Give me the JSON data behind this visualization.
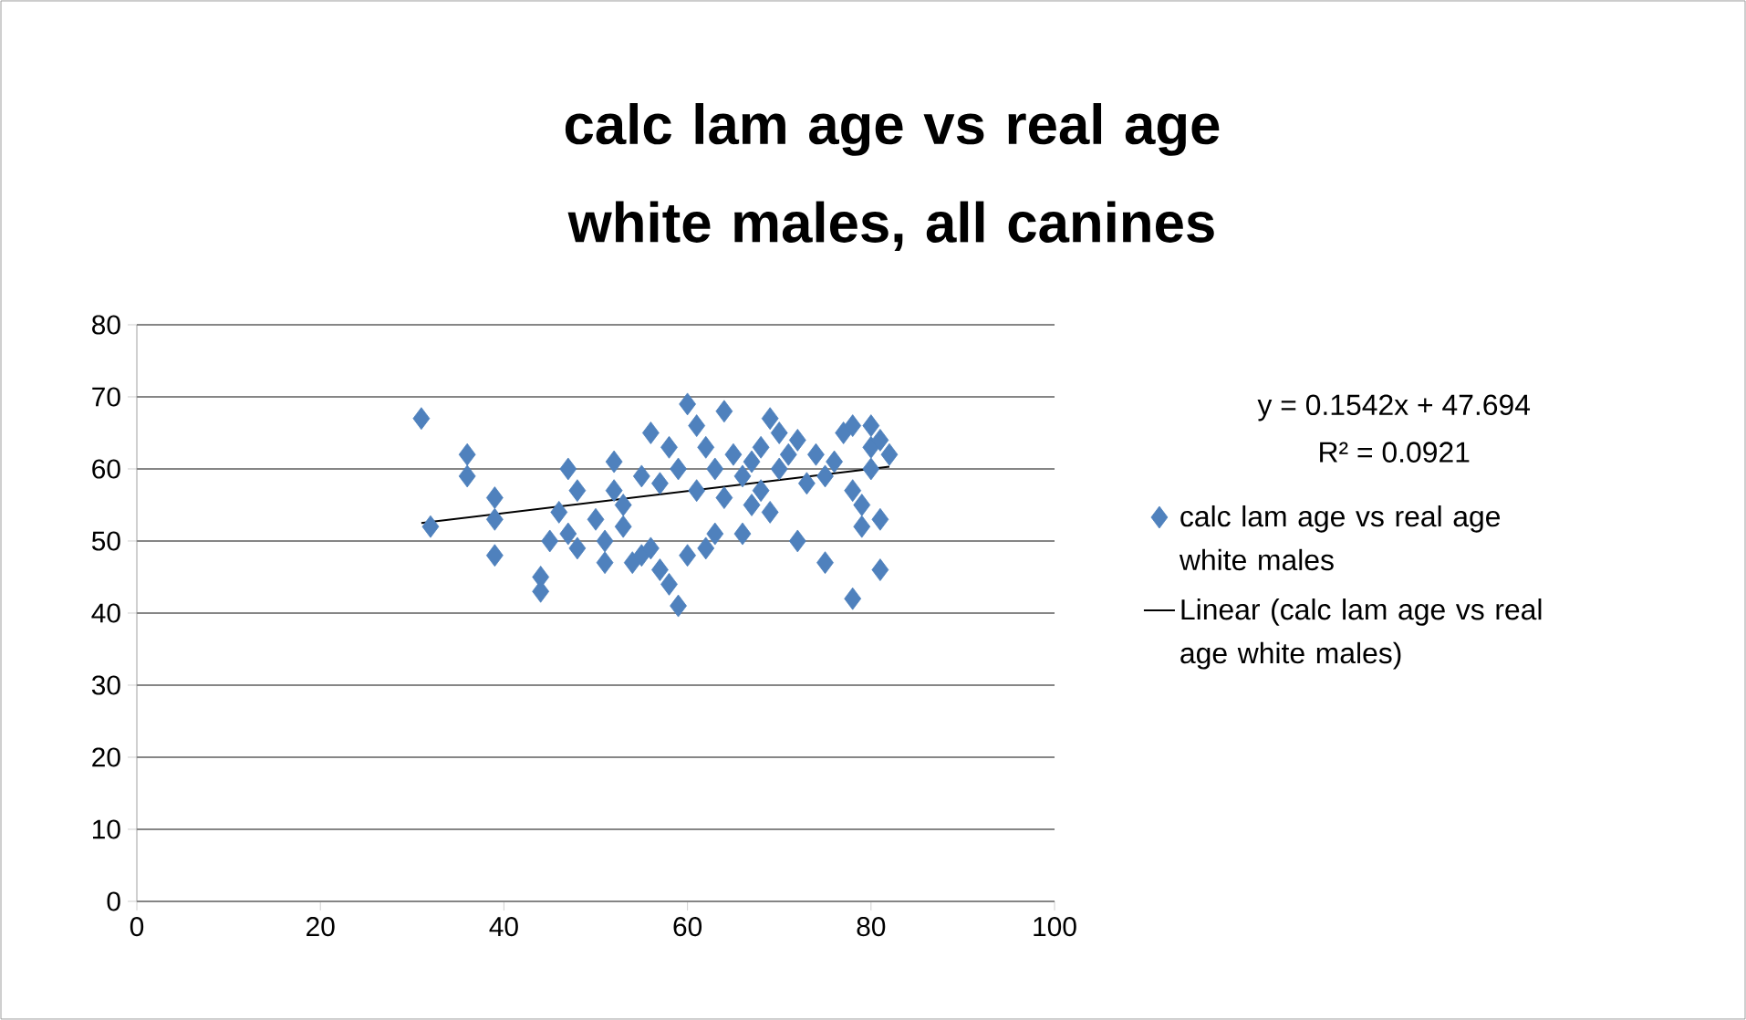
{
  "chart_data": {
    "type": "scatter",
    "title": "calc lam age vs real age white males, all canines",
    "xlim": [
      0,
      100
    ],
    "xticks": [
      0,
      20,
      40,
      60,
      80,
      100
    ],
    "ylim": [
      0,
      80
    ],
    "yticks": [
      0,
      10,
      20,
      30,
      40,
      50,
      60,
      70,
      80
    ],
    "grid": "y",
    "legend": "right",
    "marker": "diamond",
    "annotations": [
      "y = 0.1542x + 47.694",
      "R² = 0.0921"
    ],
    "series": [
      {
        "name": "calc lam age vs real age white males",
        "color": "#4f81bd",
        "x": [
          31,
          32,
          36,
          36,
          39,
          39,
          39,
          44,
          44,
          45,
          46,
          47,
          47,
          48,
          48,
          50,
          51,
          51,
          52,
          52,
          53,
          53,
          54,
          55,
          55,
          56,
          56,
          57,
          57,
          58,
          58,
          59,
          59,
          60,
          60,
          61,
          61,
          62,
          62,
          63,
          63,
          64,
          64,
          65,
          66,
          66,
          67,
          67,
          68,
          68,
          69,
          69,
          70,
          70,
          71,
          72,
          72,
          73,
          74,
          75,
          75,
          76,
          77,
          78,
          78,
          78,
          79,
          79,
          80,
          80,
          80,
          81,
          81,
          81,
          82
        ],
        "values": [
          67,
          52,
          62,
          59,
          56,
          53,
          48,
          45,
          43,
          50,
          54,
          60,
          51,
          49,
          57,
          53,
          50,
          47,
          61,
          57,
          55,
          52,
          47,
          59,
          48,
          65,
          49,
          46,
          58,
          63,
          44,
          41,
          60,
          69,
          48,
          66,
          57,
          63,
          49,
          60,
          51,
          68,
          56,
          62,
          59,
          51,
          55,
          61,
          63,
          57,
          67,
          54,
          65,
          60,
          62,
          64,
          50,
          58,
          62,
          47,
          59,
          61,
          65,
          66,
          42,
          57,
          52,
          55,
          66,
          60,
          63,
          53,
          46,
          64,
          62
        ]
      },
      {
        "type": "line",
        "name": "Linear (calc lam age vs real age white males)",
        "color": "#000000",
        "marker": "none",
        "x": [
          31,
          82
        ],
        "values": [
          52.5,
          60.3
        ]
      }
    ]
  }
}
